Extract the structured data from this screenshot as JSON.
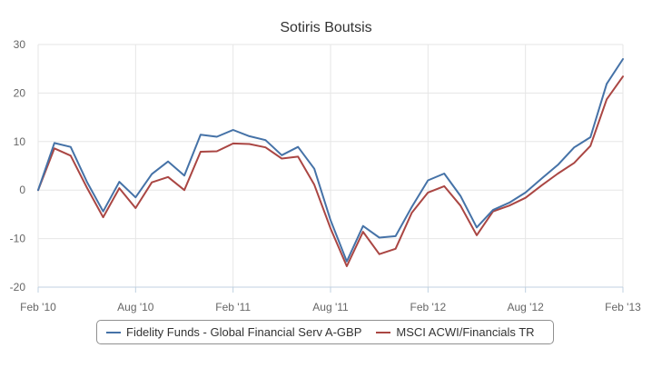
{
  "colors": {
    "series_1": "#4572a7",
    "series_2": "#aa4643",
    "grid": "#e6e6e6",
    "axis": "#c0d0e0"
  },
  "chart_data": {
    "type": "line",
    "title": "Sotiris Boutsis",
    "xlabel": "",
    "ylabel": "",
    "ylim": [
      -20,
      30
    ],
    "y_ticks": [
      -20,
      -10,
      0,
      10,
      20,
      30
    ],
    "x_tick_labels": [
      "Feb '10",
      "Aug '10",
      "Feb '11",
      "Aug '11",
      "Feb '12",
      "Aug '12",
      "Feb '13"
    ],
    "x_tick_index": [
      0,
      6,
      12,
      18,
      24,
      30,
      36
    ],
    "x": [
      "Feb '10",
      "Mar '10",
      "Apr '10",
      "May '10",
      "Jun '10",
      "Jul '10",
      "Aug '10",
      "Sep '10",
      "Oct '10",
      "Nov '10",
      "Dec '10",
      "Jan '11",
      "Feb '11",
      "Mar '11",
      "Apr '11",
      "May '11",
      "Jun '11",
      "Jul '11",
      "Aug '11",
      "Sep '11",
      "Oct '11",
      "Nov '11",
      "Dec '11",
      "Jan '12",
      "Feb '12",
      "Mar '12",
      "Apr '12",
      "May '12",
      "Jun '12",
      "Jul '12",
      "Aug '12",
      "Sep '12",
      "Oct '12",
      "Nov '12",
      "Dec '12",
      "Jan '13",
      "Feb '13"
    ],
    "grid": true,
    "legend_position": "bottom",
    "series": [
      {
        "name": "Fidelity Funds - Global Financial Serv A-GBP",
        "values": [
          0,
          9.7,
          8.9,
          1.7,
          -4.4,
          1.7,
          -1.5,
          3.3,
          5.9,
          3.0,
          11.4,
          11.0,
          12.4,
          11.1,
          10.3,
          7.2,
          8.9,
          4.4,
          -6.2,
          -14.7,
          -7.4,
          -9.8,
          -9.5,
          -3.5,
          2.0,
          3.4,
          -1.2,
          -7.7,
          -4.1,
          -2.6,
          -0.5,
          2.4,
          5.2,
          8.8,
          10.9,
          21.9,
          27.0
        ]
      },
      {
        "name": "MSCI ACWI/Financials TR",
        "values": [
          0,
          8.6,
          7.1,
          0.5,
          -5.6,
          0.4,
          -3.7,
          1.6,
          2.7,
          0.0,
          7.9,
          8.0,
          9.6,
          9.5,
          8.8,
          6.5,
          6.9,
          1.1,
          -7.9,
          -15.7,
          -8.6,
          -13.2,
          -12.1,
          -4.7,
          -0.5,
          0.8,
          -3.2,
          -9.3,
          -4.4,
          -3.2,
          -1.6,
          1.0,
          3.4,
          5.6,
          9.1,
          18.7,
          23.4
        ]
      }
    ]
  }
}
